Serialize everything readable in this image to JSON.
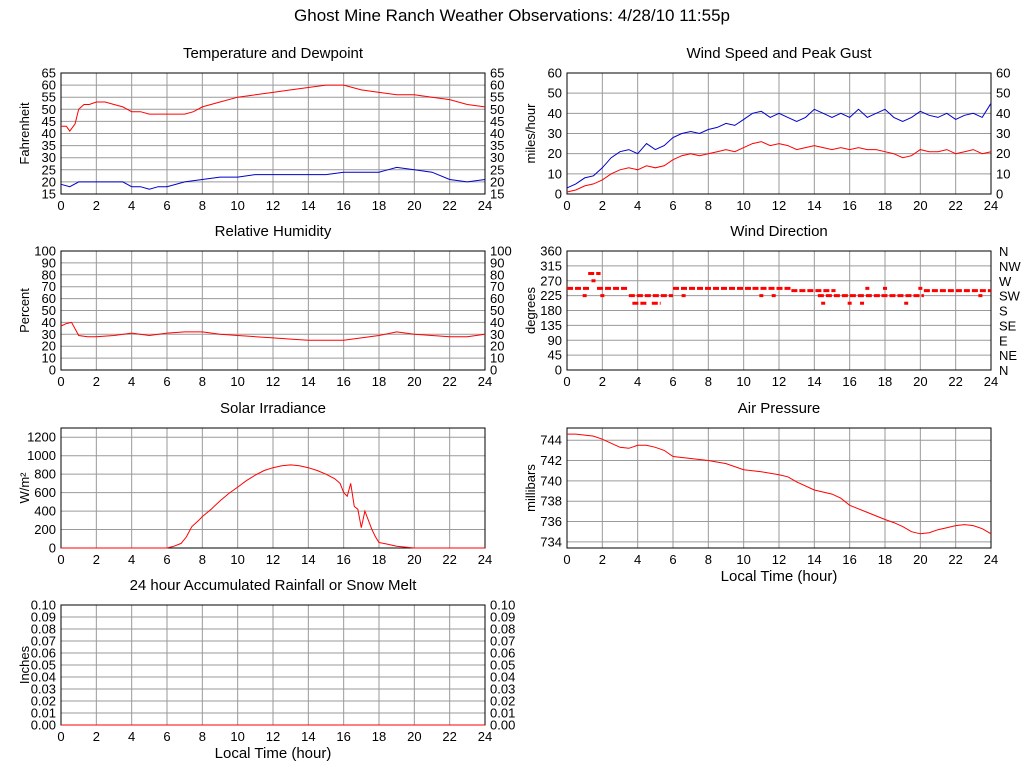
{
  "page_title": "Ghost Mine Ranch Weather Observations: 4/28/10 11:55p",
  "chart_data": [
    {
      "id": "temp",
      "type": "line",
      "title": "Temperature and Dewpoint",
      "xlabel": "",
      "ylabel": "Fahrenheit",
      "xlim": [
        0,
        24
      ],
      "ylim": [
        15,
        65
      ],
      "xticks": [
        0,
        2,
        4,
        6,
        8,
        10,
        12,
        14,
        16,
        18,
        20,
        22,
        24
      ],
      "yticks": [
        15,
        20,
        25,
        30,
        35,
        40,
        45,
        50,
        55,
        60,
        65
      ],
      "right_axis": true,
      "grid": true,
      "colors": {
        "temperature": "#ff0000",
        "dewpoint": "#0000cc"
      },
      "series": [
        {
          "color": "#ff0000",
          "x": [
            0,
            0.3,
            0.5,
            0.8,
            1.0,
            1.3,
            1.6,
            2.0,
            2.5,
            3.0,
            3.5,
            4.0,
            4.5,
            5.0,
            5.5,
            6.0,
            6.5,
            7.0,
            7.5,
            8.0,
            9.0,
            10.0,
            11.0,
            12.0,
            13.0,
            14.0,
            15.0,
            16.0,
            16.5,
            17.0,
            18.0,
            19.0,
            20.0,
            21.0,
            22.0,
            23.0,
            24.0
          ],
          "y": [
            43,
            43,
            41,
            44,
            50,
            52,
            52,
            53,
            53,
            52,
            51,
            49,
            49,
            48,
            48,
            48,
            48,
            48,
            49,
            51,
            53,
            55,
            56,
            57,
            58,
            59,
            60,
            60,
            59,
            58,
            57,
            56,
            56,
            55,
            54,
            52,
            51
          ]
        },
        {
          "color": "#0000cc",
          "x": [
            0,
            0.5,
            1.0,
            1.5,
            2.0,
            2.5,
            3.0,
            3.5,
            4.0,
            4.5,
            5.0,
            5.5,
            6.0,
            7.0,
            8.0,
            9.0,
            10.0,
            11.0,
            12.0,
            13.0,
            14.0,
            15.0,
            16.0,
            17.0,
            18.0,
            18.5,
            19.0,
            20.0,
            21.0,
            22.0,
            23.0,
            24.0
          ],
          "y": [
            19,
            18,
            20,
            20,
            20,
            20,
            20,
            20,
            18,
            18,
            17,
            18,
            18,
            20,
            21,
            22,
            22,
            23,
            23,
            23,
            23,
            23,
            24,
            24,
            24,
            25,
            26,
            25,
            24,
            21,
            20,
            21
          ]
        }
      ]
    },
    {
      "id": "wind",
      "type": "line",
      "title": "Wind Speed and Peak Gust",
      "xlabel": "",
      "ylabel": "miles/hour",
      "xlim": [
        0,
        24
      ],
      "ylim": [
        0,
        60
      ],
      "xticks": [
        0,
        2,
        4,
        6,
        8,
        10,
        12,
        14,
        16,
        18,
        20,
        22,
        24
      ],
      "yticks": [
        0,
        10,
        20,
        30,
        40,
        50,
        60
      ],
      "right_axis": true,
      "grid": true,
      "colors": {
        "peak_gust": "#0000cc",
        "wind_speed": "#ff0000"
      },
      "series": [
        {
          "color": "#0000cc",
          "x": [
            0,
            0.5,
            1.0,
            1.5,
            2.0,
            2.5,
            3.0,
            3.5,
            4.0,
            4.5,
            5.0,
            5.5,
            6.0,
            6.5,
            7.0,
            7.5,
            8.0,
            8.5,
            9.0,
            9.5,
            10.0,
            10.5,
            11.0,
            11.5,
            12.0,
            12.5,
            13.0,
            13.5,
            14.0,
            14.5,
            15.0,
            15.5,
            16.0,
            16.5,
            17.0,
            17.5,
            18.0,
            18.5,
            19.0,
            19.5,
            20.0,
            20.5,
            21.0,
            21.5,
            22.0,
            22.5,
            23.0,
            23.5,
            24.0
          ],
          "y": [
            3,
            5,
            8,
            9,
            13,
            18,
            21,
            22,
            20,
            25,
            22,
            24,
            28,
            30,
            31,
            30,
            32,
            33,
            35,
            34,
            37,
            40,
            41,
            38,
            40,
            38,
            36,
            38,
            42,
            40,
            38,
            40,
            38,
            42,
            38,
            40,
            42,
            38,
            36,
            38,
            41,
            39,
            38,
            40,
            37,
            39,
            40,
            38,
            45
          ]
        },
        {
          "color": "#ff0000",
          "x": [
            0,
            0.5,
            1.0,
            1.5,
            2.0,
            2.5,
            3.0,
            3.5,
            4.0,
            4.5,
            5.0,
            5.5,
            6.0,
            6.5,
            7.0,
            7.5,
            8.0,
            8.5,
            9.0,
            9.5,
            10.0,
            10.5,
            11.0,
            11.5,
            12.0,
            12.5,
            13.0,
            13.5,
            14.0,
            14.5,
            15.0,
            15.5,
            16.0,
            16.5,
            17.0,
            17.5,
            18.0,
            18.5,
            19.0,
            19.5,
            20.0,
            20.5,
            21.0,
            21.5,
            22.0,
            22.5,
            23.0,
            23.5,
            24.0
          ],
          "y": [
            1,
            2,
            4,
            5,
            7,
            10,
            12,
            13,
            12,
            14,
            13,
            14,
            17,
            19,
            20,
            19,
            20,
            21,
            22,
            21,
            23,
            25,
            26,
            24,
            25,
            24,
            22,
            23,
            24,
            23,
            22,
            23,
            22,
            23,
            22,
            22,
            21,
            20,
            18,
            19,
            22,
            21,
            21,
            22,
            20,
            21,
            22,
            20,
            21
          ]
        }
      ]
    },
    {
      "id": "humidity",
      "type": "line",
      "title": "Relative Humidity",
      "xlabel": "",
      "ylabel": "Percent",
      "xlim": [
        0,
        24
      ],
      "ylim": [
        0,
        100
      ],
      "xticks": [
        0,
        2,
        4,
        6,
        8,
        10,
        12,
        14,
        16,
        18,
        20,
        22,
        24
      ],
      "yticks": [
        0,
        10,
        20,
        30,
        40,
        50,
        60,
        70,
        80,
        90,
        100
      ],
      "right_axis": true,
      "grid": true,
      "colors": {
        "humidity": "#ff0000"
      },
      "series": [
        {
          "color": "#ff0000",
          "x": [
            0,
            0.3,
            0.6,
            1.0,
            1.5,
            2.0,
            3.0,
            4.0,
            5.0,
            6.0,
            7.0,
            8.0,
            9.0,
            10.0,
            11.0,
            12.0,
            13.0,
            14.0,
            15.0,
            16.0,
            17.0,
            18.0,
            19.0,
            20.0,
            21.0,
            22.0,
            23.0,
            24.0
          ],
          "y": [
            37,
            39,
            40,
            29,
            28,
            28,
            29,
            31,
            29,
            31,
            32,
            32,
            30,
            29,
            28,
            27,
            26,
            25,
            25,
            25,
            27,
            29,
            32,
            30,
            29,
            28,
            28,
            30
          ]
        }
      ]
    },
    {
      "id": "winddir",
      "type": "scatter",
      "title": "Wind Direction",
      "xlabel": "",
      "ylabel": "degrees",
      "xlim": [
        0,
        24
      ],
      "ylim": [
        0,
        360
      ],
      "xticks": [
        0,
        2,
        4,
        6,
        8,
        10,
        12,
        14,
        16,
        18,
        20,
        22,
        24
      ],
      "yticks": [
        0,
        45,
        90,
        135,
        180,
        225,
        270,
        315,
        360
      ],
      "right_labels": [
        "N",
        "NE",
        "E",
        "SE",
        "S",
        "SW",
        "W",
        "NW",
        "N"
      ],
      "grid": true,
      "colors": {
        "direction": "#ff0000"
      },
      "series": [
        {
          "color": "#ff0000",
          "segments": [
            {
              "x0": 0.0,
              "x1": 1.3,
              "y": 247
            },
            {
              "x0": 1.2,
              "x1": 1.9,
              "y": 292
            },
            {
              "x0": 1.7,
              "x1": 3.5,
              "y": 247
            },
            {
              "x0": 3.5,
              "x1": 6.0,
              "y": 225
            },
            {
              "x0": 3.7,
              "x1": 4.5,
              "y": 202
            },
            {
              "x0": 4.8,
              "x1": 5.3,
              "y": 202
            },
            {
              "x0": 6.0,
              "x1": 10.5,
              "y": 247
            },
            {
              "x0": 10.5,
              "x1": 12.7,
              "y": 247
            },
            {
              "x0": 12.7,
              "x1": 15.2,
              "y": 240
            },
            {
              "x0": 14.2,
              "x1": 17.8,
              "y": 225
            },
            {
              "x0": 17.8,
              "x1": 20.2,
              "y": 225
            },
            {
              "x0": 20.2,
              "x1": 24.0,
              "y": 240
            }
          ],
          "points": [
            {
              "x": 1.0,
              "y": 225
            },
            {
              "x": 1.5,
              "y": 270
            },
            {
              "x": 2.0,
              "y": 225
            },
            {
              "x": 6.6,
              "y": 225
            },
            {
              "x": 11.0,
              "y": 225
            },
            {
              "x": 11.7,
              "y": 225
            },
            {
              "x": 14.5,
              "y": 202
            },
            {
              "x": 16.0,
              "y": 202
            },
            {
              "x": 16.7,
              "y": 202
            },
            {
              "x": 17.0,
              "y": 247
            },
            {
              "x": 18.0,
              "y": 247
            },
            {
              "x": 19.2,
              "y": 202
            },
            {
              "x": 20.0,
              "y": 247
            },
            {
              "x": 23.4,
              "y": 225
            }
          ]
        }
      ]
    },
    {
      "id": "solar",
      "type": "line",
      "title": "Solar Irradiance",
      "xlabel": "",
      "ylabel": "W/m²",
      "xlim": [
        0,
        24
      ],
      "ylim": [
        0,
        1300
      ],
      "xticks": [
        0,
        2,
        4,
        6,
        8,
        10,
        12,
        14,
        16,
        18,
        20,
        22,
        24
      ],
      "yticks": [
        0,
        200,
        400,
        600,
        800,
        1000,
        1200
      ],
      "right_axis": false,
      "grid": true,
      "colors": {
        "irradiance": "#ff0000"
      },
      "series": [
        {
          "color": "#ff0000",
          "x": [
            0,
            6.0,
            6.4,
            6.8,
            7.1,
            7.4,
            7.8,
            8.0,
            8.5,
            9.0,
            9.5,
            10.0,
            10.5,
            11.0,
            11.5,
            12.0,
            12.5,
            13.0,
            13.5,
            14.0,
            14.5,
            15.0,
            15.5,
            15.8,
            16.0,
            16.2,
            16.4,
            16.6,
            16.8,
            17.0,
            17.2,
            17.4,
            17.6,
            17.8,
            18.0,
            18.5,
            19.0,
            19.5,
            20.0,
            24.0
          ],
          "y": [
            0,
            0,
            20,
            50,
            120,
            230,
            300,
            340,
            420,
            510,
            590,
            660,
            730,
            790,
            840,
            870,
            890,
            900,
            890,
            870,
            840,
            800,
            750,
            700,
            600,
            560,
            700,
            450,
            420,
            220,
            400,
            300,
            200,
            120,
            60,
            40,
            20,
            10,
            0,
            0
          ]
        }
      ]
    },
    {
      "id": "pressure",
      "type": "line",
      "title": "Air Pressure",
      "xlabel": "Local Time (hour)",
      "ylabel": "millibars",
      "xlim": [
        0,
        24
      ],
      "ylim": [
        733.4,
        745.2
      ],
      "xticks": [
        0,
        2,
        4,
        6,
        8,
        10,
        12,
        14,
        16,
        18,
        20,
        22,
        24
      ],
      "yticks": [
        734,
        736,
        738,
        740,
        742,
        744
      ],
      "right_axis": false,
      "grid": true,
      "colors": {
        "pressure": "#ff0000"
      },
      "series": [
        {
          "color": "#ff0000",
          "x": [
            0,
            0.5,
            1.0,
            1.5,
            2.0,
            3.0,
            3.5,
            4.0,
            4.5,
            5.0,
            5.5,
            6.0,
            7.0,
            8.0,
            9.0,
            10.0,
            11.0,
            12.0,
            12.5,
            13.0,
            14.0,
            15.0,
            15.5,
            16.0,
            17.0,
            18.0,
            18.5,
            19.0,
            19.5,
            20.0,
            20.5,
            21.0,
            21.5,
            22.0,
            22.5,
            23.0,
            23.5,
            24.0
          ],
          "y": [
            744.6,
            744.6,
            744.5,
            744.4,
            744.1,
            743.3,
            743.2,
            743.5,
            743.5,
            743.3,
            743.0,
            742.4,
            742.2,
            742.0,
            741.7,
            741.1,
            740.9,
            740.6,
            740.4,
            739.9,
            739.1,
            738.7,
            738.3,
            737.6,
            736.9,
            736.2,
            735.9,
            735.5,
            735.0,
            734.8,
            734.9,
            735.2,
            735.4,
            735.6,
            735.7,
            735.6,
            735.3,
            734.8
          ]
        }
      ]
    },
    {
      "id": "rain",
      "type": "line",
      "title": "24 hour Accumulated Rainfall or Snow Melt",
      "xlabel": "Local Time (hour)",
      "ylabel": "Inches",
      "xlim": [
        0,
        24
      ],
      "ylim": [
        0,
        0.1
      ],
      "xticks": [
        0,
        2,
        4,
        6,
        8,
        10,
        12,
        14,
        16,
        18,
        20,
        22,
        24
      ],
      "yticks": [
        0.0,
        0.01,
        0.02,
        0.03,
        0.04,
        0.05,
        0.06,
        0.07,
        0.08,
        0.09,
        0.1
      ],
      "ytick_labels": [
        "0.00",
        "0.01",
        "0.02",
        "0.03",
        "0.04",
        "0.05",
        "0.06",
        "0.07",
        "0.08",
        "0.09",
        "0.10"
      ],
      "right_axis": true,
      "grid": true,
      "colors": {
        "rainfall": "#ff0000"
      },
      "series": [
        {
          "color": "#ff0000",
          "x": [
            0,
            24
          ],
          "y": [
            0,
            0
          ]
        }
      ]
    }
  ]
}
